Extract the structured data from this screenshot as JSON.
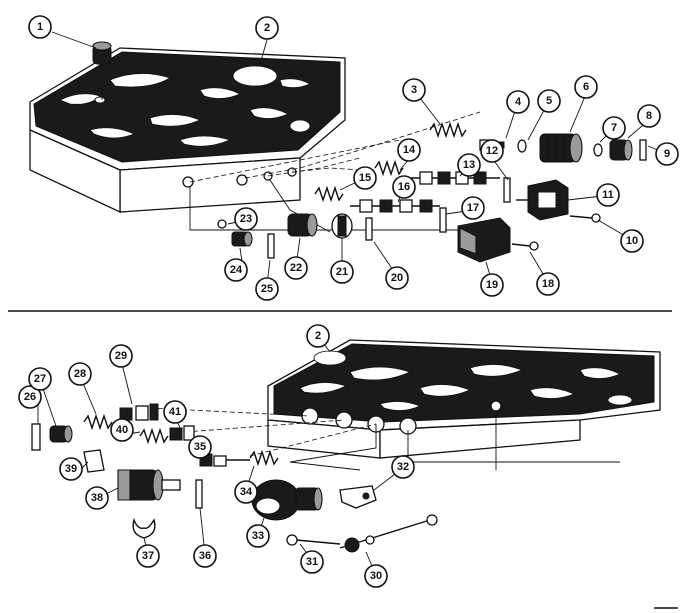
{
  "callouts": [
    {
      "id": "1",
      "label": "1"
    },
    {
      "id": "2",
      "label": "2"
    },
    {
      "id": "3",
      "label": "3"
    },
    {
      "id": "4",
      "label": "4"
    },
    {
      "id": "5",
      "label": "5"
    },
    {
      "id": "6",
      "label": "6"
    },
    {
      "id": "7",
      "label": "7"
    },
    {
      "id": "8",
      "label": "8"
    },
    {
      "id": "9",
      "label": "9"
    },
    {
      "id": "10",
      "label": "10"
    },
    {
      "id": "11",
      "label": "11"
    },
    {
      "id": "12",
      "label": "12"
    },
    {
      "id": "13",
      "label": "13"
    },
    {
      "id": "14",
      "label": "14"
    },
    {
      "id": "15",
      "label": "15"
    },
    {
      "id": "16",
      "label": "16"
    },
    {
      "id": "17",
      "label": "17"
    },
    {
      "id": "18",
      "label": "18"
    },
    {
      "id": "19",
      "label": "19"
    },
    {
      "id": "20",
      "label": "20"
    },
    {
      "id": "21",
      "label": "21"
    },
    {
      "id": "22",
      "label": "22"
    },
    {
      "id": "23",
      "label": "23"
    },
    {
      "id": "24",
      "label": "24"
    },
    {
      "id": "25",
      "label": "25"
    },
    {
      "id": "2b",
      "label": "2"
    },
    {
      "id": "26",
      "label": "26"
    },
    {
      "id": "27",
      "label": "27"
    },
    {
      "id": "28",
      "label": "28"
    },
    {
      "id": "29",
      "label": "29"
    },
    {
      "id": "30",
      "label": "30"
    },
    {
      "id": "31",
      "label": "31"
    },
    {
      "id": "32",
      "label": "32"
    },
    {
      "id": "33",
      "label": "33"
    },
    {
      "id": "34",
      "label": "34"
    },
    {
      "id": "35",
      "label": "35"
    },
    {
      "id": "36",
      "label": "36"
    },
    {
      "id": "37",
      "label": "37"
    },
    {
      "id": "38",
      "label": "38"
    },
    {
      "id": "39",
      "label": "39"
    },
    {
      "id": "40",
      "label": "40"
    },
    {
      "id": "41",
      "label": "41"
    }
  ]
}
